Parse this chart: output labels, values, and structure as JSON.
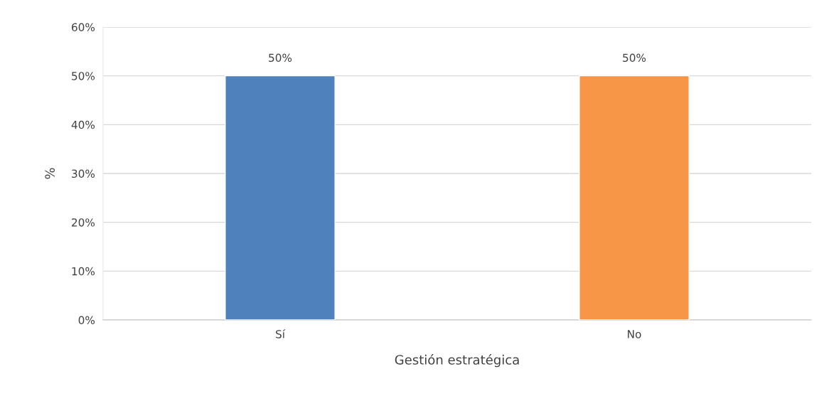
{
  "chart_data": {
    "type": "bar",
    "xlabel": "Gestión estratégica",
    "ylabel": "%",
    "categories": [
      "Sí",
      "No"
    ],
    "values": [
      50,
      50
    ],
    "colors": [
      "#4f81bd",
      "#f79646"
    ],
    "value_labels": [
      "50%",
      "50%"
    ],
    "ylim": [
      0,
      60
    ],
    "yticks": [
      {
        "value": 0,
        "label": "0%"
      },
      {
        "value": 10,
        "label": "10%"
      },
      {
        "value": 20,
        "label": "20%"
      },
      {
        "value": 30,
        "label": "30%"
      },
      {
        "value": 40,
        "label": "40%"
      },
      {
        "value": 50,
        "label": "50%"
      },
      {
        "value": 60,
        "label": "60%"
      }
    ],
    "grid": "y",
    "legend": false
  }
}
